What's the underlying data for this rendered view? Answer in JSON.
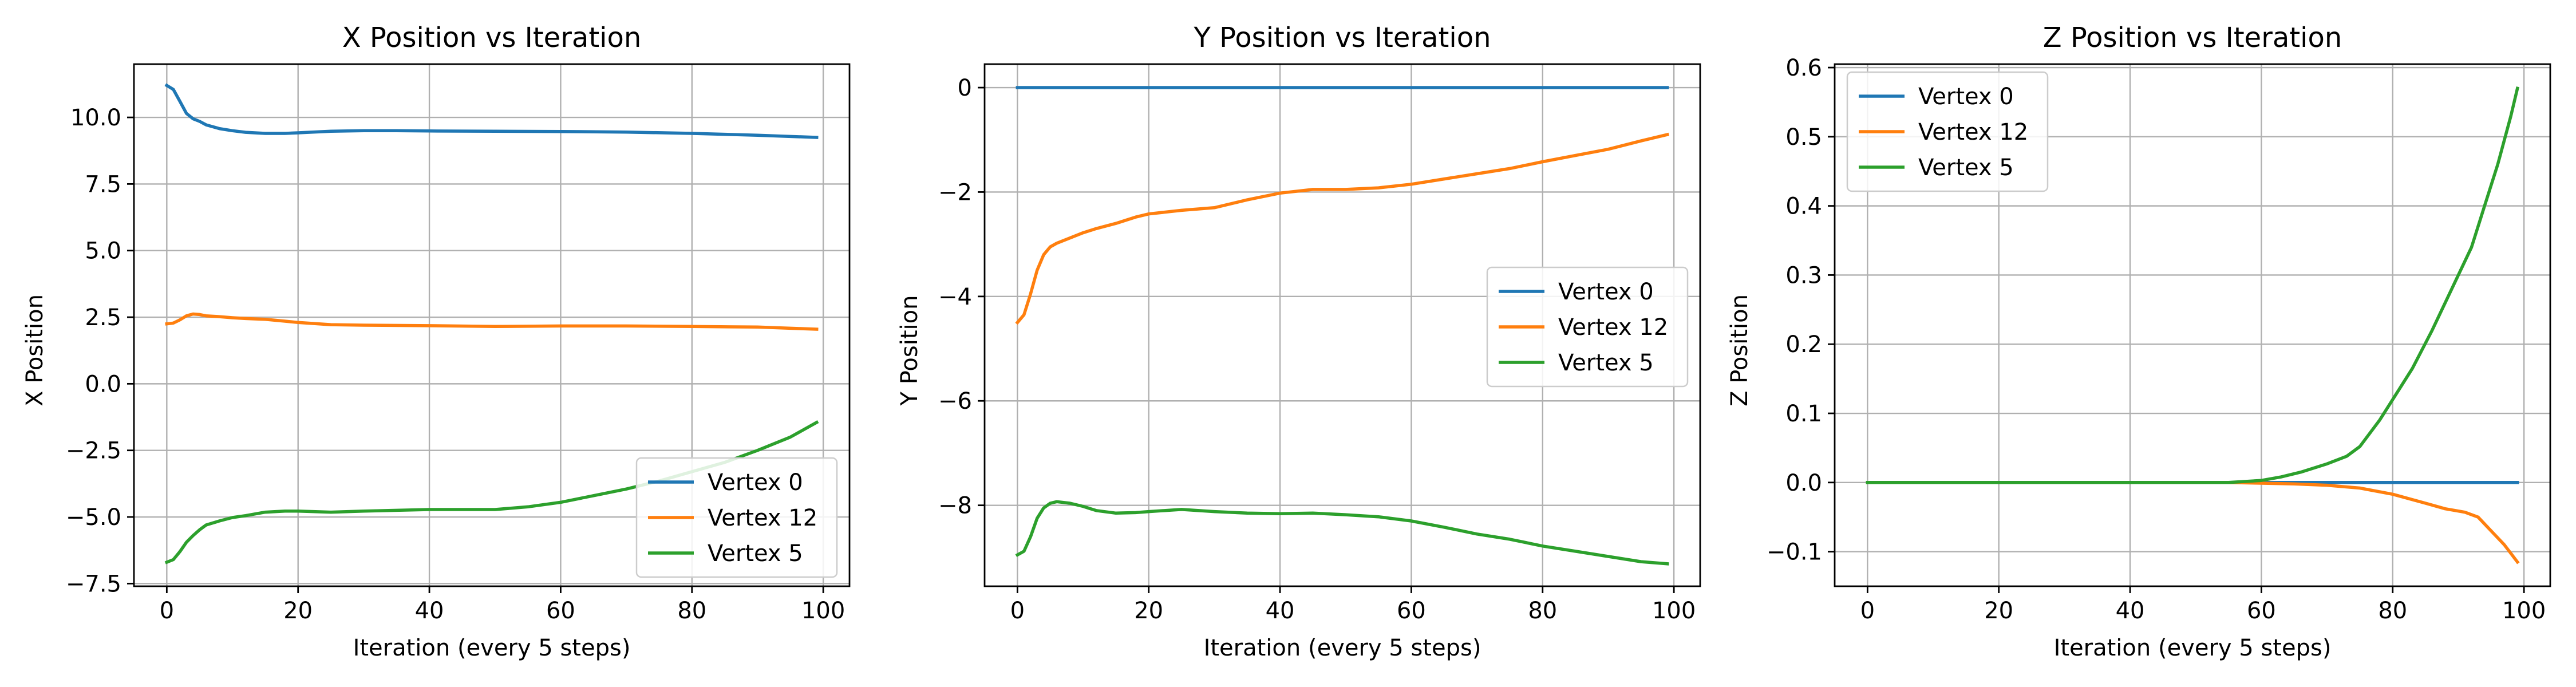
{
  "chart_data": [
    {
      "type": "line",
      "title": "X Position vs Iteration",
      "xlabel": "Iteration (every 5 steps)",
      "ylabel": "X Position",
      "xlim": [
        -5,
        104
      ],
      "ylim": [
        -7.6,
        12.0
      ],
      "xticks": [
        0,
        20,
        40,
        60,
        80,
        100
      ],
      "yticks": [
        -7.5,
        -5.0,
        -2.5,
        0.0,
        2.5,
        5.0,
        7.5,
        10.0
      ],
      "ytick_labels": [
        "−7.5",
        "−5.0",
        "−2.5",
        "0.0",
        "2.5",
        "5.0",
        "7.5",
        "10.0"
      ],
      "grid": true,
      "legend": "lower right",
      "series": [
        {
          "name": "Vertex 0",
          "color": "#1f77b4",
          "x": [
            0,
            1,
            2,
            3,
            4,
            5,
            6,
            8,
            10,
            12,
            15,
            18,
            20,
            25,
            30,
            35,
            40,
            50,
            60,
            70,
            80,
            90,
            99
          ],
          "y": [
            11.2,
            11.05,
            10.6,
            10.15,
            9.95,
            9.85,
            9.72,
            9.58,
            9.5,
            9.44,
            9.4,
            9.4,
            9.42,
            9.48,
            9.5,
            9.5,
            9.49,
            9.48,
            9.47,
            9.45,
            9.4,
            9.33,
            9.25
          ]
        },
        {
          "name": "Vertex 12",
          "color": "#ff7f0e",
          "x": [
            0,
            1,
            2,
            3,
            4,
            5,
            6,
            8,
            10,
            12,
            15,
            18,
            20,
            25,
            30,
            40,
            50,
            60,
            70,
            80,
            90,
            99
          ],
          "y": [
            2.25,
            2.28,
            2.4,
            2.55,
            2.62,
            2.6,
            2.55,
            2.52,
            2.48,
            2.45,
            2.42,
            2.35,
            2.3,
            2.22,
            2.2,
            2.18,
            2.15,
            2.17,
            2.17,
            2.15,
            2.13,
            2.05
          ]
        },
        {
          "name": "Vertex 5",
          "color": "#2ca02c",
          "x": [
            0,
            1,
            2,
            3,
            4,
            5,
            6,
            8,
            10,
            12,
            15,
            18,
            20,
            25,
            30,
            40,
            50,
            55,
            60,
            65,
            70,
            75,
            80,
            85,
            90,
            95,
            99
          ],
          "y": [
            -6.7,
            -6.6,
            -6.3,
            -5.95,
            -5.7,
            -5.48,
            -5.3,
            -5.15,
            -5.02,
            -4.95,
            -4.82,
            -4.78,
            -4.78,
            -4.82,
            -4.78,
            -4.72,
            -4.72,
            -4.62,
            -4.45,
            -4.2,
            -3.95,
            -3.65,
            -3.3,
            -2.95,
            -2.5,
            -2.0,
            -1.45
          ]
        }
      ]
    },
    {
      "type": "line",
      "title": "Y Position vs Iteration",
      "xlabel": "Iteration (every 5 steps)",
      "ylabel": "Y Position",
      "xlim": [
        -5,
        104
      ],
      "ylim": [
        -9.55,
        0.45
      ],
      "xticks": [
        0,
        20,
        40,
        60,
        80,
        100
      ],
      "yticks": [
        -8,
        -6,
        -4,
        -2,
        0
      ],
      "ytick_labels": [
        "−8",
        "−6",
        "−4",
        "−2",
        "0"
      ],
      "grid": true,
      "legend": "center right",
      "series": [
        {
          "name": "Vertex 0",
          "color": "#1f77b4",
          "x": [
            0,
            99
          ],
          "y": [
            0.0,
            0.0
          ]
        },
        {
          "name": "Vertex 12",
          "color": "#ff7f0e",
          "x": [
            0,
            1,
            2,
            3,
            4,
            5,
            6,
            8,
            10,
            12,
            15,
            18,
            20,
            25,
            30,
            35,
            40,
            45,
            50,
            55,
            60,
            65,
            70,
            75,
            80,
            85,
            90,
            95,
            99
          ],
          "y": [
            -4.5,
            -4.35,
            -3.95,
            -3.5,
            -3.2,
            -3.05,
            -2.98,
            -2.88,
            -2.78,
            -2.7,
            -2.6,
            -2.48,
            -2.42,
            -2.35,
            -2.3,
            -2.15,
            -2.02,
            -1.95,
            -1.95,
            -1.92,
            -1.85,
            -1.75,
            -1.65,
            -1.55,
            -1.42,
            -1.3,
            -1.18,
            -1.02,
            -0.9
          ]
        },
        {
          "name": "Vertex 5",
          "color": "#2ca02c",
          "x": [
            0,
            1,
            2,
            3,
            4,
            5,
            6,
            8,
            10,
            12,
            15,
            18,
            20,
            25,
            30,
            35,
            40,
            45,
            50,
            55,
            60,
            65,
            70,
            75,
            80,
            85,
            90,
            95,
            99
          ],
          "y": [
            -8.95,
            -8.88,
            -8.6,
            -8.25,
            -8.05,
            -7.96,
            -7.93,
            -7.96,
            -8.02,
            -8.1,
            -8.15,
            -8.14,
            -8.12,
            -8.08,
            -8.12,
            -8.15,
            -8.16,
            -8.15,
            -8.18,
            -8.22,
            -8.3,
            -8.42,
            -8.55,
            -8.65,
            -8.78,
            -8.88,
            -8.98,
            -9.08,
            -9.12
          ]
        }
      ]
    },
    {
      "type": "line",
      "title": "Z Position vs Iteration",
      "xlabel": "Iteration (every 5 steps)",
      "ylabel": "Z Position",
      "xlim": [
        -5,
        104
      ],
      "ylim": [
        -0.15,
        0.605
      ],
      "xticks": [
        0,
        20,
        40,
        60,
        80,
        100
      ],
      "yticks": [
        -0.1,
        0.0,
        0.1,
        0.2,
        0.3,
        0.4,
        0.5,
        0.6
      ],
      "ytick_labels": [
        "−0.1",
        "0.0",
        "0.1",
        "0.2",
        "0.3",
        "0.4",
        "0.5",
        "0.6"
      ],
      "grid": true,
      "legend": "upper left",
      "series": [
        {
          "name": "Vertex 0",
          "color": "#1f77b4",
          "x": [
            0,
            99
          ],
          "y": [
            0.0,
            0.0
          ]
        },
        {
          "name": "Vertex 12",
          "color": "#ff7f0e",
          "x": [
            0,
            55,
            60,
            65,
            70,
            75,
            80,
            85,
            88,
            91,
            93,
            95,
            97,
            99
          ],
          "y": [
            0.0,
            0.0,
            -0.001,
            -0.002,
            -0.004,
            -0.008,
            -0.017,
            -0.03,
            -0.038,
            -0.043,
            -0.05,
            -0.07,
            -0.09,
            -0.115
          ]
        },
        {
          "name": "Vertex 5",
          "color": "#2ca02c",
          "x": [
            0,
            55,
            60,
            63,
            66,
            70,
            73,
            75,
            78,
            80,
            83,
            86,
            89,
            92,
            94,
            96,
            98,
            99
          ],
          "y": [
            0.0,
            0.0,
            0.003,
            0.008,
            0.015,
            0.027,
            0.038,
            0.052,
            0.09,
            0.12,
            0.165,
            0.22,
            0.28,
            0.34,
            0.4,
            0.46,
            0.53,
            0.57
          ]
        }
      ]
    }
  ]
}
